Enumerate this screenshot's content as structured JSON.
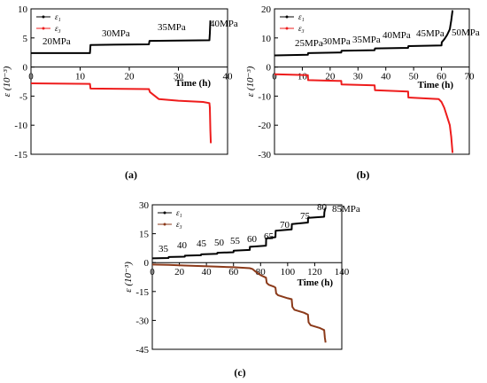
{
  "colors": {
    "axis": "#000000",
    "panel_a_e1": "#000000",
    "panel_a_e3": "#ee1c1c",
    "panel_b_e1": "#000000",
    "panel_b_e3": "#ee1c1c",
    "panel_c_e1": "#000000",
    "panel_c_e3": "#8b3a1a"
  },
  "chart_data": [
    {
      "panel_label": "(a)",
      "type": "line",
      "ylabel": "ε (10⁻³)",
      "xlabel": "Time (h)",
      "xlim": [
        0,
        40
      ],
      "ylim": [
        -15,
        10
      ],
      "xticks": [
        "0",
        "10",
        "20",
        "30",
        "40"
      ],
      "yticks": [
        "-15",
        "-10",
        "-5",
        "0",
        "5",
        "10"
      ],
      "legend": {
        "position": "top-left",
        "entries": [
          "ε₁",
          "ε₃"
        ]
      },
      "stress_labels": [
        "20MPa",
        "30MPa",
        "35MPa",
        "40MPa"
      ],
      "series": [
        {
          "name": "ε₁",
          "x": [
            0,
            12,
            12.1,
            24,
            24.1,
            36.3,
            36.4,
            36.5
          ],
          "y": [
            2.4,
            2.4,
            3.8,
            3.9,
            4.5,
            4.6,
            5.8,
            8.0
          ]
        },
        {
          "name": "ε₃",
          "x": [
            0,
            12,
            12.1,
            24,
            24.2,
            26,
            30,
            35,
            36.3,
            36.4,
            36.5,
            36.6
          ],
          "y": [
            -2.8,
            -2.9,
            -3.7,
            -3.8,
            -4.3,
            -5.5,
            -5.8,
            -6.0,
            -6.2,
            -7,
            -11,
            -13.1
          ]
        }
      ]
    },
    {
      "panel_label": "(b)",
      "type": "line",
      "ylabel": "ε (10⁻³)",
      "xlabel": "Time (h)",
      "xlim": [
        0,
        70
      ],
      "ylim": [
        -30,
        20
      ],
      "xticks": [
        "0",
        "10",
        "20",
        "30",
        "40",
        "50",
        "60",
        "70"
      ],
      "yticks": [
        "-30",
        "-20",
        "-10",
        "0",
        "10",
        "20"
      ],
      "legend": {
        "position": "top-left",
        "entries": [
          "ε₁",
          "ε₃"
        ]
      },
      "stress_labels": [
        "25MPa",
        "30MPa",
        "35MPa",
        "40MPa",
        "45MPa",
        "50MPa"
      ],
      "series": [
        {
          "name": "ε₁",
          "x": [
            0,
            12,
            12.1,
            24,
            24.1,
            36,
            36.1,
            48,
            48.1,
            60,
            60.1,
            61,
            62,
            63,
            63.5,
            64
          ],
          "y": [
            4.0,
            4.2,
            4.8,
            5.0,
            5.6,
            5.8,
            6.4,
            6.6,
            7.2,
            7.4,
            8.5,
            9.5,
            11,
            13,
            16,
            19.5
          ]
        },
        {
          "name": "ε₃",
          "x": [
            0,
            12,
            12.1,
            24,
            24.1,
            36,
            36.1,
            48,
            48.1,
            59,
            60,
            61,
            62,
            63,
            63.5,
            64
          ],
          "y": [
            -2.5,
            -2.8,
            -4.5,
            -4.8,
            -6,
            -6.3,
            -8,
            -8.4,
            -10.5,
            -11,
            -12,
            -14,
            -17,
            -20,
            -24,
            -29.5
          ]
        }
      ]
    },
    {
      "panel_label": "(c)",
      "type": "line",
      "ylabel": "ε (10⁻³)",
      "xlabel": "Time (h)",
      "xlim": [
        0,
        140
      ],
      "ylim": [
        -45,
        30
      ],
      "xticks": [
        "0",
        "20",
        "40",
        "60",
        "80",
        "100",
        "120",
        "140"
      ],
      "yticks": [
        "-45",
        "-30",
        "-15",
        "0",
        "15",
        "30"
      ],
      "legend": {
        "position": "top-left",
        "entries": [
          "ε₁",
          "ε₃"
        ]
      },
      "stress_labels": [
        "35",
        "40",
        "45",
        "50",
        "55",
        "60",
        "65",
        "70",
        "75",
        "80",
        "85MPa"
      ],
      "series": [
        {
          "name": "ε₁",
          "x": [
            0,
            12,
            12.1,
            24,
            24.1,
            36,
            36.1,
            48,
            48.1,
            60,
            60.1,
            72,
            72.1,
            84,
            84.1,
            91,
            91.1,
            103,
            103.1,
            115,
            115.1,
            127,
            127.1,
            127.6,
            128
          ],
          "y": [
            2.2,
            2.4,
            2.9,
            3.1,
            3.6,
            3.8,
            4.3,
            4.6,
            5.1,
            5.4,
            6.2,
            6.6,
            8.2,
            8.8,
            12.5,
            13.2,
            16.5,
            17.2,
            20.0,
            20.8,
            23.2,
            23.8,
            26.0,
            27.5,
            28.5
          ]
        },
        {
          "name": "ε₃",
          "x": [
            0,
            12,
            24,
            36,
            48,
            60,
            72,
            74,
            76,
            80,
            84,
            84.5,
            86,
            90,
            91,
            91.5,
            93,
            100,
            103,
            103.5,
            105,
            112,
            115,
            115.5,
            117,
            124,
            127,
            127.5,
            128
          ],
          "y": [
            -1.0,
            -1.2,
            -1.5,
            -1.8,
            -2.1,
            -2.4,
            -2.9,
            -3.3,
            -4.5,
            -6.5,
            -7.8,
            -10.5,
            -11.5,
            -12.5,
            -13.0,
            -16.0,
            -17.0,
            -18.5,
            -19.0,
            -23.0,
            -24.5,
            -26.0,
            -27.0,
            -31.0,
            -32.5,
            -34.0,
            -35.0,
            -39.0,
            -41.5
          ]
        }
      ]
    }
  ]
}
